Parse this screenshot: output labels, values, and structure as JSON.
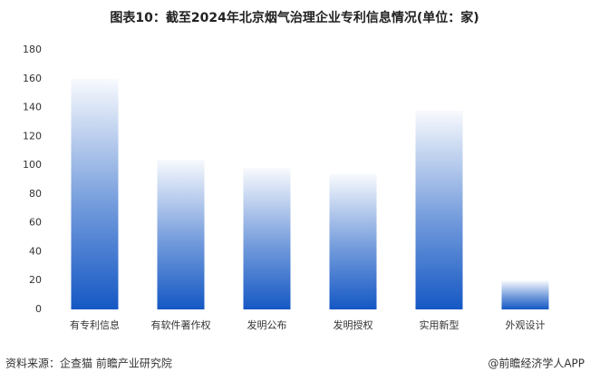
{
  "chart_data": {
    "type": "bar",
    "title": "图表10：截至2024年北京烟气治理企业专利信息情况(单位：家)",
    "categories": [
      "有专利信息",
      "有软件著作权",
      "发明公布",
      "发明授权",
      "实用新型",
      "外观设计"
    ],
    "values": [
      160,
      104,
      98,
      94,
      138,
      20
    ],
    "color": "#1558c4",
    "ylim": [
      0,
      180
    ],
    "yticks": [
      0,
      20,
      40,
      60,
      80,
      100,
      120,
      140,
      160,
      180
    ],
    "grid": false,
    "source": "资料来源：企查猫 前瞻产业研究院",
    "credit": "@前瞻经济学人APP"
  }
}
